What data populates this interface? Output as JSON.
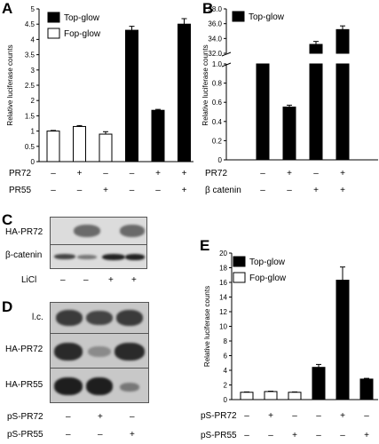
{
  "panels": {
    "A": {
      "letter": "A",
      "legend": [
        "Top-glow",
        "Fop-glow"
      ],
      "row_labels": [
        "PR72",
        "PR55"
      ]
    },
    "B": {
      "letter": "B",
      "legend": [
        "Top-glow"
      ],
      "row_labels": [
        "PR72",
        "β catenin"
      ]
    },
    "C": {
      "letter": "C",
      "blot_labels": [
        "HA-PR72",
        "β-catenin"
      ],
      "row_labels": [
        "LiCl"
      ],
      "row_signs": [
        [
          "–",
          "–",
          "+",
          "+"
        ]
      ]
    },
    "D": {
      "letter": "D",
      "blot_labels": [
        "l.c.",
        "HA-PR72",
        "HA-PR55"
      ],
      "row_labels": [
        "pS-PR72",
        "pS-PR55"
      ],
      "row_signs": [
        [
          "–",
          "+",
          "–"
        ],
        [
          "–",
          "–",
          "+"
        ]
      ]
    },
    "E": {
      "letter": "E",
      "legend": [
        "Top-glow",
        "Fop-glow"
      ],
      "row_labels": [
        "pS-PR72",
        "pS-PR55"
      ]
    }
  },
  "chart_data": [
    {
      "id": "A",
      "type": "bar",
      "ylabel": "Relative luciferase counts",
      "ylim": [
        0,
        5
      ],
      "yticks": [
        "0",
        "0.5",
        "1",
        "1.5",
        "2",
        "2.5",
        "3",
        "3.5",
        "4",
        "4.5",
        "5"
      ],
      "grid": false,
      "legend_position": "top-left",
      "series": [
        {
          "name": "Top-glow",
          "color": "#000000",
          "positions": [
            3,
            4,
            5
          ],
          "values": [
            4.3,
            1.68,
            4.5
          ],
          "errors": [
            0.13,
            0.03,
            0.18
          ]
        },
        {
          "name": "Fop-glow",
          "color": "#ffffff",
          "positions": [
            0,
            1,
            2
          ],
          "values": [
            1.0,
            1.15,
            0.9
          ],
          "errors": [
            0.02,
            0.03,
            0.08
          ]
        }
      ],
      "conditions": [
        {
          "label": "PR72",
          "signs": [
            "–",
            "+",
            "–",
            "–",
            "+",
            "+"
          ]
        },
        {
          "label": "PR55",
          "signs": [
            "–",
            "–",
            "+",
            "–",
            "–",
            "+"
          ]
        }
      ]
    },
    {
      "id": "B",
      "type": "bar",
      "ylabel": "Relative luciferase counts",
      "broken_axis": true,
      "lower_ylim": [
        0,
        1.0
      ],
      "lower_yticks": [
        "0",
        "0.2",
        "0.4",
        "0.6",
        "0.8",
        "1.0"
      ],
      "upper_ylim": [
        32.0,
        38.0
      ],
      "upper_yticks": [
        "32.0",
        "34.0",
        "36.0",
        "38.0"
      ],
      "grid": false,
      "legend_position": "top-left",
      "series": [
        {
          "name": "Top-glow",
          "color": "#000000",
          "positions": [
            0,
            1,
            2,
            3
          ],
          "values": [
            1.0,
            0.55,
            33.2,
            35.2
          ],
          "errors": [
            0.01,
            0.02,
            0.4,
            0.5
          ]
        }
      ],
      "conditions": [
        {
          "label": "PR72",
          "signs": [
            "–",
            "+",
            "–",
            "+"
          ]
        },
        {
          "label": "β catenin",
          "signs": [
            "–",
            "–",
            "+",
            "+"
          ]
        }
      ]
    },
    {
      "id": "E",
      "type": "bar",
      "ylabel": "Relative luciferase counts",
      "ylim": [
        0,
        20
      ],
      "yticks": [
        "0",
        "2",
        "4",
        "6",
        "8",
        "10",
        "12",
        "14",
        "16",
        "18",
        "20"
      ],
      "grid": false,
      "legend_position": "top-left",
      "series": [
        {
          "name": "Top-glow",
          "color": "#000000",
          "positions": [
            3,
            4,
            5
          ],
          "values": [
            4.4,
            16.3,
            2.8
          ],
          "errors": [
            0.4,
            1.8,
            0.1
          ]
        },
        {
          "name": "Fop-glow",
          "color": "#ffffff",
          "positions": [
            0,
            1,
            2
          ],
          "values": [
            1.0,
            1.1,
            1.0
          ],
          "errors": [
            0.05,
            0.05,
            0.05
          ]
        }
      ],
      "conditions": [
        {
          "label": "pS-PR72",
          "signs": [
            "–",
            "+",
            "–",
            "–",
            "+",
            "–"
          ]
        },
        {
          "label": "pS-PR55",
          "signs": [
            "–",
            "–",
            "+",
            "–",
            "–",
            "+"
          ]
        }
      ]
    }
  ]
}
